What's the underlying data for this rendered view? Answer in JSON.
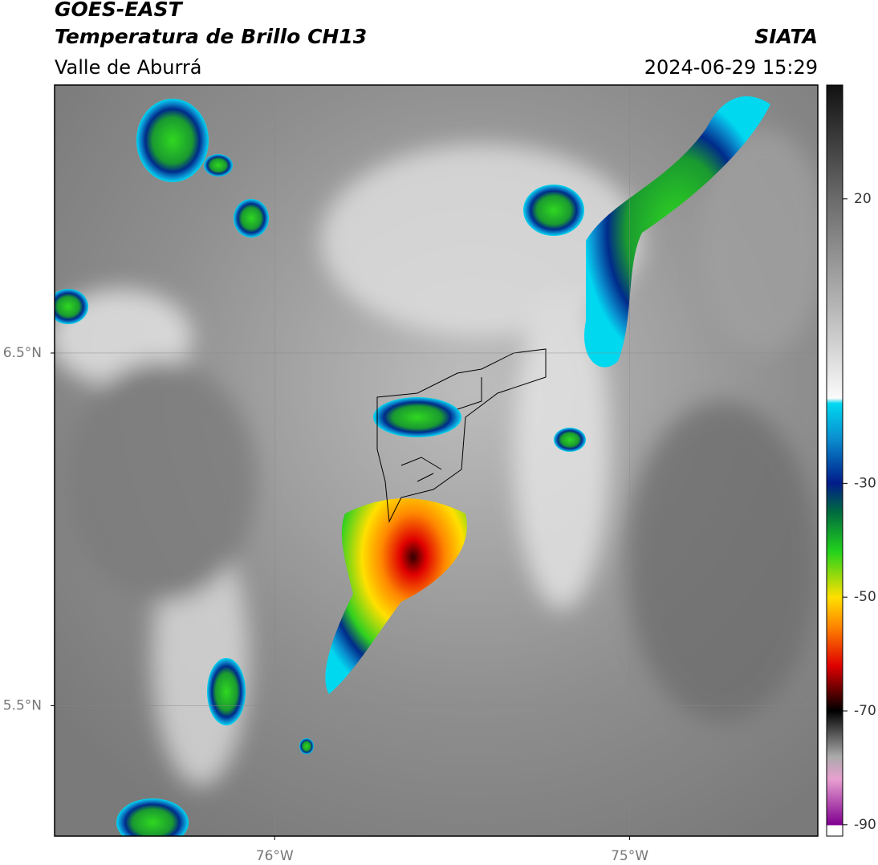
{
  "header": {
    "title": "GOES-EAST",
    "subtitle": "Temperatura de Brillo CH13",
    "region": "Valle de Aburrá",
    "source": "SIATA",
    "datetime": "2024-06-29 15:29"
  },
  "map": {
    "xlim": [
      -76.62,
      -74.47
    ],
    "ylim": [
      5.13,
      7.26
    ],
    "xticks": [
      {
        "value": -76,
        "label": "76°W"
      },
      {
        "value": -75,
        "label": "75°W"
      }
    ],
    "yticks": [
      {
        "value": 6.5,
        "label": "6.5°N"
      },
      {
        "value": 5.5,
        "label": "5.5°N"
      }
    ]
  },
  "colorbar": {
    "range": [
      -92,
      40
    ],
    "ticks": [
      20,
      -30,
      -50,
      -70,
      -90
    ]
  }
}
